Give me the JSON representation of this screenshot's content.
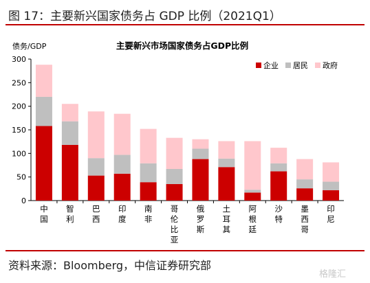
{
  "figure": {
    "title": "图 17：主要新兴国家债务占 GDP 比例（2021Q1）",
    "source": "资料来源：Bloomberg，中信证券研究部",
    "watermark": "格隆汇"
  },
  "colors": {
    "enterprise": "#cc0000",
    "household": "#bfbfbf",
    "government": "#ffc7cc",
    "rule": "#c00000"
  },
  "chart_data": {
    "type": "bar",
    "stacked": true,
    "title": "主要新兴市场国家债务占GDP比例",
    "ylabel": "债务/GDP",
    "ylim": [
      0,
      300
    ],
    "yticks": [
      0,
      50,
      100,
      150,
      200,
      250,
      300
    ],
    "legend_position": "top-right",
    "categories": [
      "中国",
      "智利",
      "巴西",
      "印度",
      "南非",
      "哥伦比亚",
      "俄罗斯",
      "土耳其",
      "阿根廷",
      "沙特",
      "墨西哥",
      "印尼"
    ],
    "series": [
      {
        "name": "企业",
        "values": [
          158,
          118,
          53,
          57,
          39,
          35,
          88,
          71,
          17,
          62,
          26,
          22
        ]
      },
      {
        "name": "居民",
        "values": [
          62,
          50,
          37,
          40,
          40,
          32,
          22,
          18,
          6,
          17,
          19,
          18
        ]
      },
      {
        "name": "政府",
        "values": [
          68,
          37,
          99,
          87,
          73,
          66,
          20,
          37,
          103,
          33,
          43,
          41
        ]
      }
    ]
  }
}
